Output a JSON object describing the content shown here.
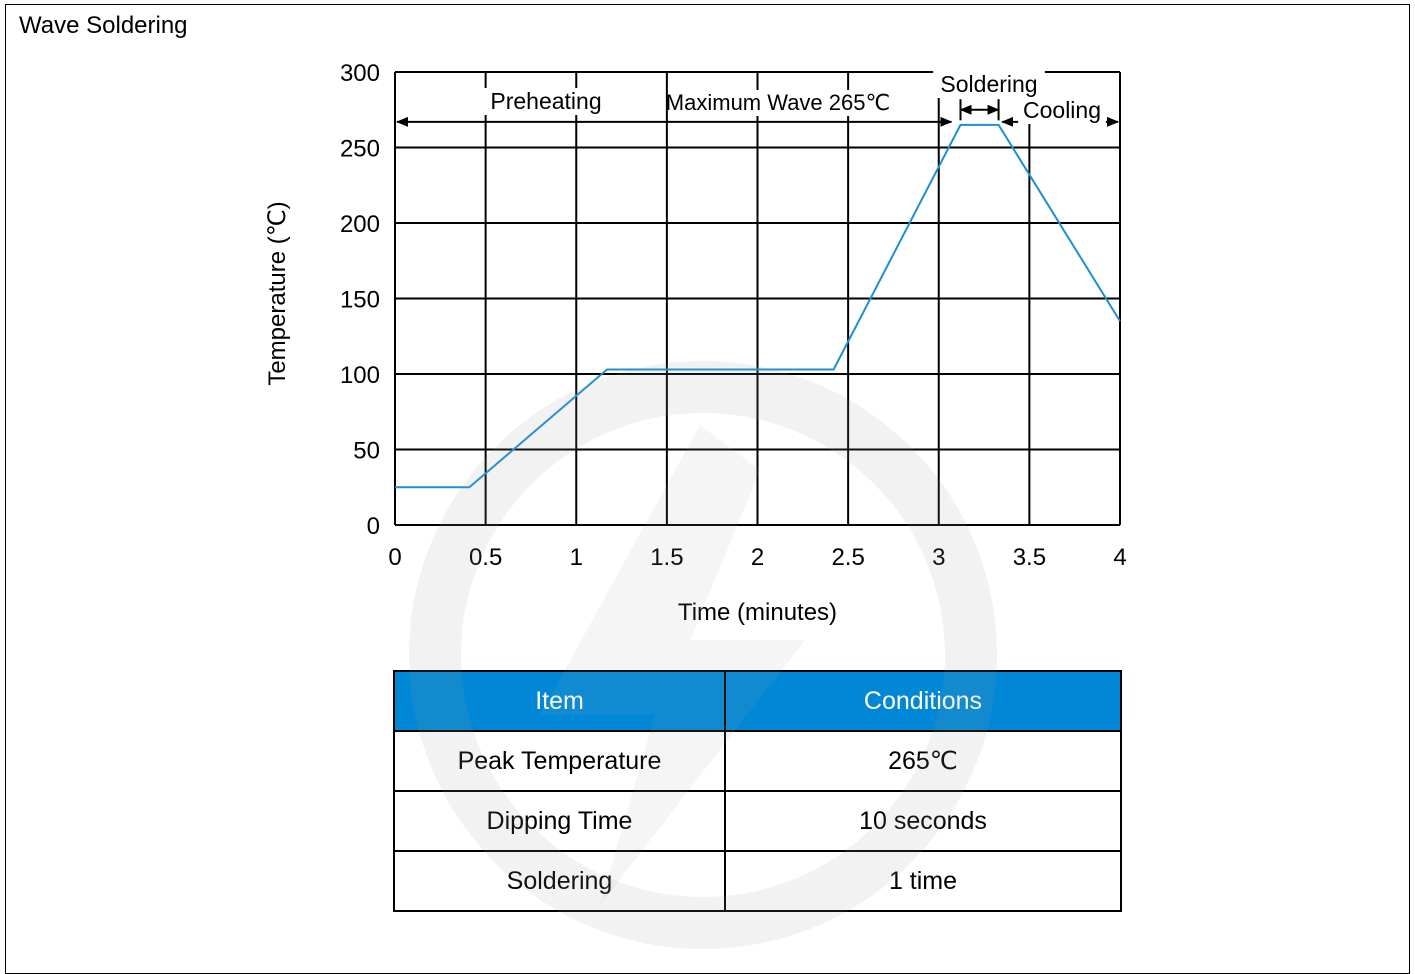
{
  "page": {
    "section_title": "Wave Soldering"
  },
  "chart_data": {
    "type": "line",
    "xlabel": "Time (minutes)",
    "ylabel": "Temperature (℃)",
    "xlim": [
      0,
      4
    ],
    "ylim": [
      0,
      300
    ],
    "x_ticks": [
      0,
      0.5,
      1,
      1.5,
      2,
      2.5,
      3,
      3.5,
      4
    ],
    "x_tick_labels": [
      "0",
      "0.5",
      "1",
      "1.5",
      "2",
      "2.5",
      "3",
      "3.5",
      "4"
    ],
    "y_ticks": [
      0,
      50,
      100,
      150,
      200,
      250,
      300
    ],
    "y_tick_labels": [
      "0",
      "50",
      "100",
      "150",
      "200",
      "250",
      "300"
    ],
    "grid": true,
    "series": [
      {
        "color": "#1e8fd0",
        "x": [
          0,
          0.41,
          1.17,
          2.42,
          3.12,
          3.33,
          4.0
        ],
        "y": [
          25,
          25,
          103,
          103,
          265,
          265,
          135
        ]
      }
    ],
    "annotations": {
      "preheating": "Preheating",
      "maximum_wave": "Maximum Wave 265℃",
      "soldering": "Soldering",
      "cooling": "Cooling"
    },
    "phase_ranges": {
      "preheating": [
        0,
        3.07
      ],
      "soldering": [
        3.12,
        3.33
      ],
      "cooling": [
        3.35,
        4.0
      ]
    },
    "phase_arrow_temperature": 267
  },
  "table": {
    "headers": [
      "Item",
      "Conditions"
    ],
    "rows": [
      [
        "Peak Temperature",
        "265℃"
      ],
      [
        "Dipping Time",
        "10 seconds"
      ],
      [
        "Soldering",
        "1 time"
      ]
    ],
    "header_color": "#0088d6"
  }
}
